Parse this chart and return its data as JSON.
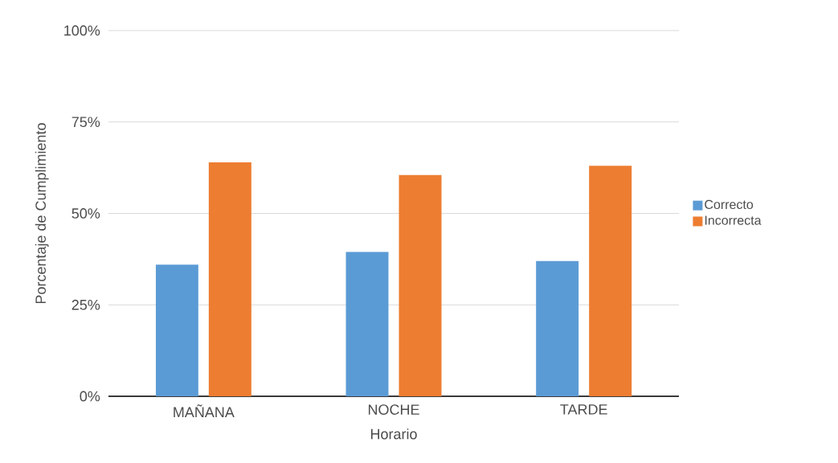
{
  "chart_data": {
    "type": "bar",
    "xlabel": "Horario",
    "ylabel": "Porcentaje de Cumplimiento",
    "categories": [
      "MAÑANA",
      "NOCHE",
      "TARDE"
    ],
    "series": [
      {
        "name": "Correcto",
        "color": "#5b9bd5",
        "values": [
          36,
          39.5,
          37
        ]
      },
      {
        "name": "Incorrecta",
        "color": "#ed7d31",
        "values": [
          64,
          60.5,
          63
        ]
      }
    ],
    "ylim": [
      0,
      100
    ],
    "yticks": [
      {
        "value": 0,
        "label": "0%"
      },
      {
        "value": 25,
        "label": "25%"
      },
      {
        "value": 50,
        "label": "50%"
      },
      {
        "value": 75,
        "label": "75%"
      },
      {
        "value": 100,
        "label": "100%"
      }
    ],
    "grid": "y",
    "legend": "right"
  }
}
